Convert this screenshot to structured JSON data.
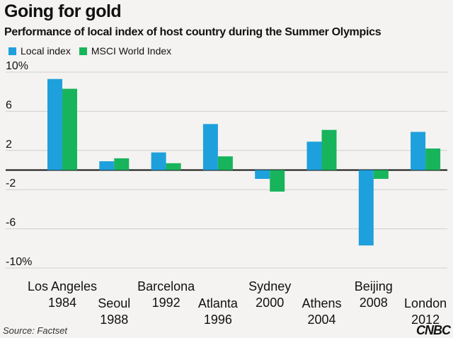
{
  "chart_data": {
    "type": "bar",
    "title": "Going for gold",
    "subtitle": "Performance of local index of host country during the Summer Olympics",
    "categories": [
      [
        "Los Angeles",
        "1984"
      ],
      [
        "Seoul",
        "1988"
      ],
      [
        "Barcelona",
        "1992"
      ],
      [
        "Atlanta",
        "1996"
      ],
      [
        "Sydney",
        "2000"
      ],
      [
        "Athens",
        "2004"
      ],
      [
        "Beijing",
        "2008"
      ],
      [
        "London",
        "2012"
      ]
    ],
    "series": [
      {
        "name": "Local index",
        "color": "#1ea0dc",
        "values": [
          9.3,
          0.9,
          1.8,
          4.7,
          -0.9,
          2.9,
          -7.7,
          3.9
        ]
      },
      {
        "name": "MSCI World Index",
        "color": "#18b45c",
        "values": [
          8.3,
          1.2,
          0.7,
          1.4,
          -2.2,
          4.1,
          -0.9,
          2.2
        ]
      }
    ],
    "yticks": [
      "10%",
      "6",
      "2",
      "-2",
      "-6",
      "-10%"
    ],
    "ytick_values": [
      10,
      6,
      2,
      -2,
      -6,
      -10
    ],
    "ylim": [
      -10,
      10
    ],
    "xlabel": "",
    "ylabel": "",
    "legend": "top-left",
    "grid": true
  },
  "source": "Source: Factset",
  "brand": "CNBC"
}
